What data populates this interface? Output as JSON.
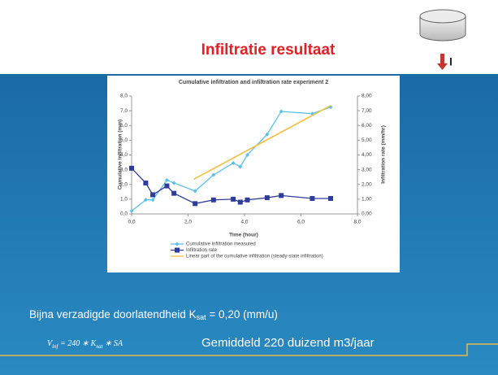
{
  "title": "Infiltratie resultaat",
  "icon_label": "I",
  "ksat_line": {
    "prefix": "Bijna verzadigde doorlatendheid K",
    "sub": "sat",
    "suffix": " = 0,20 (mm/u)"
  },
  "formula": {
    "v": "V",
    "v_sub": "inf",
    "middle": " = 240 ∗ K",
    "k_sub": "sat",
    "end": " ∗ SA"
  },
  "average": "Gemiddeld 220 duizend m3/jaar",
  "chart_data": {
    "type": "line",
    "title": "Cumulative infiltration and infiltration rate experiment 2",
    "x_label": "Time (hour)",
    "y_label": "Cumulative infiltration (mm)",
    "y2_label": "Infiltration rate (mm/hr)",
    "x": [
      0,
      0.5,
      0.75,
      1.25,
      1.5,
      2.25,
      2.9,
      3.6,
      3.85,
      4.1,
      4.8,
      5.3,
      6.4,
      7.05
    ],
    "series": [
      {
        "name": "Cumulative infiltration measured",
        "color": "#5bc0e8",
        "marker": "diamond",
        "axis": "y",
        "values": [
          0.2,
          0.95,
          0.95,
          2.3,
          2.1,
          1.55,
          2.65,
          3.45,
          3.2,
          4.0,
          5.4,
          6.95,
          6.8,
          7.25
        ]
      },
      {
        "name": "Infiltration rate",
        "color": "#2e3d9a",
        "marker": "square",
        "axis": "y2",
        "values": [
          3.1,
          2.1,
          1.3,
          1.9,
          1.4,
          0.7,
          0.95,
          1.0,
          0.8,
          0.95,
          1.1,
          1.25,
          1.05,
          1.05
        ]
      },
      {
        "name": "Linear part of the cumulative infiltration (steady-state infiltration)",
        "color": "#f0c040",
        "axis": "y",
        "x": [
          2.2,
          7.05
        ],
        "values": [
          2.35,
          7.35
        ]
      }
    ],
    "xlim": [
      0,
      8
    ],
    "xticks": [
      {
        "value": 0,
        "label": "0,0"
      },
      {
        "value": 2,
        "label": "2,0"
      },
      {
        "value": 4,
        "label": "4,0"
      },
      {
        "value": 6,
        "label": "6,0"
      },
      {
        "value": 8,
        "label": "8,0"
      }
    ],
    "ylim": [
      0,
      8
    ],
    "yticks": [
      {
        "value": 0,
        "label": "0,0"
      },
      {
        "value": 1,
        "label": "1,0"
      },
      {
        "value": 2,
        "label": "2,0"
      },
      {
        "value": 3,
        "label": "3,0"
      },
      {
        "value": 4,
        "label": "4,0"
      },
      {
        "value": 5,
        "label": "5,0"
      },
      {
        "value": 6,
        "label": "6,0"
      },
      {
        "value": 7,
        "label": "7,0"
      },
      {
        "value": 8,
        "label": "8,0"
      }
    ],
    "y2lim": [
      0,
      8
    ],
    "y2ticks": [
      {
        "value": 0,
        "label": "0,00"
      },
      {
        "value": 1,
        "label": "1,00"
      },
      {
        "value": 2,
        "label": "2,00"
      },
      {
        "value": 3,
        "label": "3,00"
      },
      {
        "value": 4,
        "label": "4,00"
      },
      {
        "value": 5,
        "label": "5,00"
      },
      {
        "value": 6,
        "label": "6,00"
      },
      {
        "value": 7,
        "label": "7,00"
      },
      {
        "value": 8,
        "label": "8,00"
      }
    ],
    "legend": "bottom"
  }
}
